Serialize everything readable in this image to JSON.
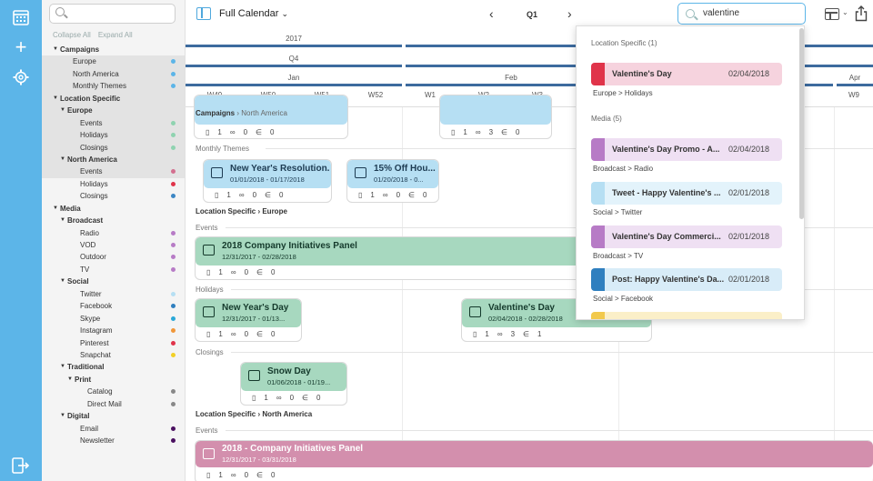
{
  "app": {
    "view_label": "Full Calendar",
    "period": "Q1",
    "search_value": "valentine"
  },
  "sidebar": {
    "collapse_all": "Collapse All",
    "expand_all": "Expand All",
    "items": [
      {
        "label": "Campaigns",
        "level": 0,
        "caret": true,
        "color": null,
        "bold": true
      },
      {
        "label": "Europe",
        "level": 1,
        "caret": false,
        "color": "#5cb5e8",
        "hl": true
      },
      {
        "label": "North America",
        "level": 1,
        "caret": false,
        "color": "#5cb5e8",
        "hl": true
      },
      {
        "label": "Monthly Themes",
        "level": 1,
        "caret": false,
        "color": "#5cb5e8",
        "hl": true
      },
      {
        "label": "Location Specific",
        "level": 0,
        "caret": true,
        "color": null,
        "bold": true,
        "hl": true
      },
      {
        "label": "Europe",
        "level": 1,
        "caret": true,
        "color": null,
        "bold": true,
        "hl": true
      },
      {
        "label": "Events",
        "level": 2,
        "caret": false,
        "color": "#8fd3b0",
        "hl": true
      },
      {
        "label": "Holidays",
        "level": 2,
        "caret": false,
        "color": "#8fd3b0",
        "hl": true
      },
      {
        "label": "Closings",
        "level": 2,
        "caret": false,
        "color": "#8fd3b0",
        "hl": true
      },
      {
        "label": "North America",
        "level": 1,
        "caret": true,
        "color": null,
        "bold": true,
        "hl": true
      },
      {
        "label": "Events",
        "level": 2,
        "caret": false,
        "color": "#d36f8f",
        "hl": true
      },
      {
        "label": "Holidays",
        "level": 2,
        "caret": false,
        "color": "#e0344a"
      },
      {
        "label": "Closings",
        "level": 2,
        "caret": false,
        "color": "#3c86c4"
      },
      {
        "label": "Media",
        "level": 0,
        "caret": true,
        "color": null,
        "bold": true
      },
      {
        "label": "Broadcast",
        "level": 1,
        "caret": true,
        "color": null,
        "bold": true
      },
      {
        "label": "Radio",
        "level": 2,
        "caret": false,
        "color": "#b77bc6"
      },
      {
        "label": "VOD",
        "level": 2,
        "caret": false,
        "color": "#b77bc6"
      },
      {
        "label": "Outdoor",
        "level": 2,
        "caret": false,
        "color": "#b77bc6"
      },
      {
        "label": "TV",
        "level": 2,
        "caret": false,
        "color": "#b77bc6"
      },
      {
        "label": "Social",
        "level": 1,
        "caret": true,
        "color": null,
        "bold": true
      },
      {
        "label": "Twitter",
        "level": 2,
        "caret": false,
        "color": "#b6dff3"
      },
      {
        "label": "Facebook",
        "level": 2,
        "caret": false,
        "color": "#2f7fbf"
      },
      {
        "label": "Skype",
        "level": 2,
        "caret": false,
        "color": "#2aa8d8"
      },
      {
        "label": "Instagram",
        "level": 2,
        "caret": false,
        "color": "#f0973a"
      },
      {
        "label": "Pinterest",
        "level": 2,
        "caret": false,
        "color": "#e0344a"
      },
      {
        "label": "Snapchat",
        "level": 2,
        "caret": false,
        "color": "#f2d026"
      },
      {
        "label": "Traditional",
        "level": 1,
        "caret": true,
        "color": null,
        "bold": true
      },
      {
        "label": "Print",
        "level": 2,
        "caret": true,
        "color": null,
        "bold": true
      },
      {
        "label": "Catalog",
        "level": 3,
        "caret": false,
        "color": "#888888"
      },
      {
        "label": "Direct Mail",
        "level": 3,
        "caret": false,
        "color": "#888888"
      },
      {
        "label": "Digital",
        "level": 1,
        "caret": true,
        "color": null,
        "bold": true
      },
      {
        "label": "Email",
        "level": 2,
        "caret": false,
        "color": "#4a1060"
      },
      {
        "label": "Newsletter",
        "level": 2,
        "caret": false,
        "color": "#4a1060"
      }
    ]
  },
  "timeline": {
    "year": "2017",
    "quarter": "Q4",
    "months": [
      "Jan",
      "Feb",
      "Apr"
    ],
    "weeks": [
      "W49",
      "W50",
      "W51",
      "W52",
      "W1",
      "W2",
      "W3",
      "W8",
      "W9"
    ]
  },
  "sections": {
    "campaigns_na": {
      "label_bold": "Campaigns",
      "label_rest": " › North America"
    },
    "monthly_themes": "Monthly Themes",
    "ls_europe": "Location Specific › Europe",
    "events": "Events",
    "holidays": "Holidays",
    "closings": "Closings",
    "ls_na": "Location Specific › North America"
  },
  "cards": [
    {
      "id": "c0",
      "title": "",
      "date": "",
      "f1": "1",
      "f2": "0",
      "f3": "0"
    },
    {
      "id": "c1",
      "title": "",
      "date": "",
      "f1": "1",
      "f2": "3",
      "f3": "0"
    },
    {
      "id": "c2",
      "title": "New Year's Resolution...",
      "date": "01/01/2018 - 01/17/2018",
      "f1": "1",
      "f2": "0",
      "f3": "0"
    },
    {
      "id": "c3",
      "title": "15% Off Hou...",
      "date": "01/20/2018 - 0...",
      "f1": "1",
      "f2": "0",
      "f3": "0"
    },
    {
      "id": "c4",
      "title": "2018 Company Initiatives Panel",
      "date": "12/31/2017 - 02/28/2018",
      "f1": "1",
      "f2": "0",
      "f3": "0"
    },
    {
      "id": "c5",
      "title": "New Year's Day",
      "date": "12/31/2017 - 01/13...",
      "f1": "1",
      "f2": "0",
      "f3": "0"
    },
    {
      "id": "c6",
      "title": "Valentine's Day",
      "date": "02/04/2018 - 02/28/2018",
      "f1": "1",
      "f2": "3",
      "f3": "1"
    },
    {
      "id": "c7",
      "title": "Snow Day",
      "date": "01/06/2018 - 01/19...",
      "f1": "1",
      "f2": "0",
      "f3": "0"
    },
    {
      "id": "c8",
      "title": "2018 - Company Initiatives Panel",
      "date": "12/31/2017 - 03/31/2018",
      "f1": "1",
      "f2": "0",
      "f3": "0"
    }
  ],
  "dropdown": {
    "group1": "Location Specific (1)",
    "group2": "Media (5)",
    "results": [
      {
        "title": "Valentine's Day",
        "date": "02/04/2018",
        "path": "Europe > Holidays",
        "swatch": "#e0344a",
        "bg": "#f6d3de"
      },
      {
        "title": "Valentine's Day Promo - A...",
        "date": "02/04/2018",
        "path": "Broadcast > Radio",
        "swatch": "#b77bc6",
        "bg": "#efe0f3"
      },
      {
        "title": "Tweet - Happy Valentine's ...",
        "date": "02/01/2018",
        "path": "Social > Twitter",
        "swatch": "#b6dff3",
        "bg": "#e3f3fb"
      },
      {
        "title": "Valentine's Day Commerci...",
        "date": "02/01/2018",
        "path": "Broadcast > TV",
        "swatch": "#b77bc6",
        "bg": "#efe0f3"
      },
      {
        "title": "Post: Happy Valentine's Da...",
        "date": "02/01/2018",
        "path": "Social > Facebook",
        "swatch": "#2f7fbf",
        "bg": "#d8ecf8"
      },
      {
        "title": "",
        "date": "",
        "path": "",
        "swatch": "#f2c94c",
        "bg": "#fbefc8"
      }
    ]
  }
}
